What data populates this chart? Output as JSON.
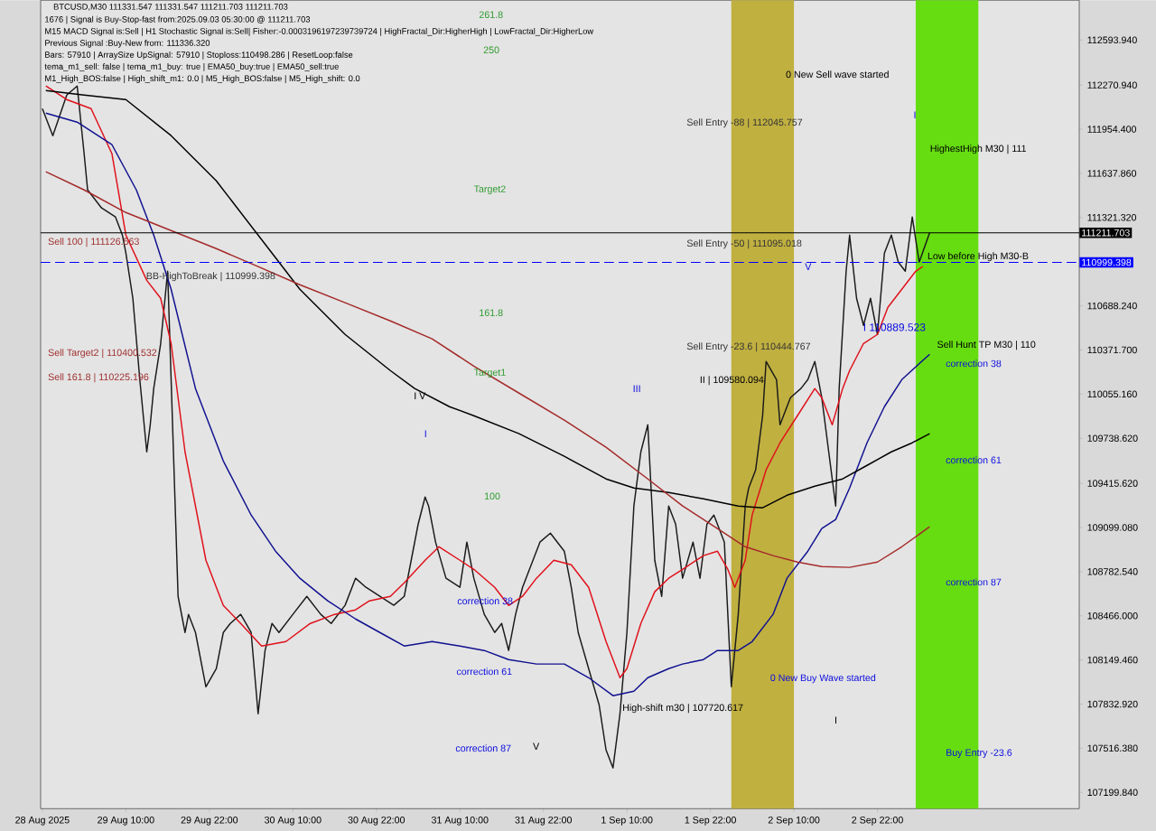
{
  "chart_data": {
    "type": "line",
    "title": "BTCUSD,M30  111331.547 111331.547 111211.703 111211.703",
    "xlim": [
      "2025-08-28T21:45",
      "2025-09-04T03:00"
    ],
    "ylim": [
      107083,
      112879
    ],
    "xticks": [
      {
        "value": "2025-08-28T22:00",
        "label": "28 Aug 2025"
      },
      {
        "value": "2025-08-29T10:00",
        "label": "29 Aug 10:00"
      },
      {
        "value": "2025-08-29T22:00",
        "label": "29 Aug 22:00"
      },
      {
        "value": "2025-08-30T10:00",
        "label": "30 Aug 10:00"
      },
      {
        "value": "2025-08-30T22:00",
        "label": "30 Aug 22:00"
      },
      {
        "value": "2025-08-31T10:00",
        "label": "31 Aug 10:00"
      },
      {
        "value": "2025-08-31T22:00",
        "label": "31 Aug 22:00"
      },
      {
        "value": "2025-09-01T10:00",
        "label": "1 Sep 10:00"
      },
      {
        "value": "2025-09-01T22:00",
        "label": "1 Sep 22:00"
      },
      {
        "value": "2025-09-02T10:00",
        "label": "2 Sep 10:00"
      },
      {
        "value": "2025-09-02T22:00",
        "label": "2 Sep 22:00"
      }
    ],
    "yticks": [
      {
        "value": 112593.94,
        "label": "112593.940"
      },
      {
        "value": 112270.94,
        "label": "112270.940"
      },
      {
        "value": 111954.4,
        "label": "111954.400"
      },
      {
        "value": 111637.86,
        "label": "111637.860"
      },
      {
        "value": 111321.32,
        "label": "111321.320"
      },
      {
        "value": 110688.24,
        "label": "110688.240"
      },
      {
        "value": 110371.7,
        "label": "110371.700"
      },
      {
        "value": 110055.16,
        "label": "110055.160"
      },
      {
        "value": 109738.62,
        "label": "109738.620"
      },
      {
        "value": 109415.62,
        "label": "109415.620"
      },
      {
        "value": 109099.08,
        "label": "109099.080"
      },
      {
        "value": 108782.54,
        "label": "108782.540"
      },
      {
        "value": 108466.0,
        "label": "108466.000"
      },
      {
        "value": 108149.46,
        "label": "108149.460"
      },
      {
        "value": 107832.92,
        "label": "107832.920"
      },
      {
        "value": 107516.38,
        "label": "107516.380"
      },
      {
        "value": 107199.84,
        "label": "107199.840"
      }
    ],
    "marker": "none",
    "series": [
      {
        "color": "#1a1a1a",
        "x": [
          "2025-08-28T22:00",
          "2025-08-28T23:30",
          "2025-08-29T01:30",
          "2025-08-29T03:00",
          "2025-08-29T04:00",
          "2025-08-29T04:30",
          "2025-08-29T06:30",
          "2025-08-29T08:30",
          "2025-08-29T09:30",
          "2025-08-29T10:00",
          "2025-08-29T11:00",
          "2025-08-29T12:00",
          "2025-08-29T13:00",
          "2025-08-29T13:30",
          "2025-08-29T14:00",
          "2025-08-29T15:00",
          "2025-08-29T16:00",
          "2025-08-29T16:30",
          "2025-08-29T17:00",
          "2025-08-29T17:30",
          "2025-08-29T18:30",
          "2025-08-29T19:00",
          "2025-08-29T20:00",
          "2025-08-29T21:30",
          "2025-08-29T23:00",
          "2025-08-30T00:00",
          "2025-08-30T01:00",
          "2025-08-30T02:30",
          "2025-08-30T04:00",
          "2025-08-30T05:00",
          "2025-08-30T06:00",
          "2025-08-30T07:00",
          "2025-08-30T08:00",
          "2025-08-30T10:00",
          "2025-08-30T12:00",
          "2025-08-30T14:00",
          "2025-08-30T15:30",
          "2025-08-30T17:30",
          "2025-08-30T19:00",
          "2025-08-30T20:30",
          "2025-08-30T22:30",
          "2025-08-31T00:30",
          "2025-08-31T02:00",
          "2025-08-31T04:00",
          "2025-08-31T05:00",
          "2025-08-31T05:30",
          "2025-08-31T06:30",
          "2025-08-31T08:00",
          "2025-08-31T10:00",
          "2025-08-31T11:00",
          "2025-08-31T12:00",
          "2025-08-31T13:30",
          "2025-08-31T15:00",
          "2025-08-31T16:00",
          "2025-08-31T17:00",
          "2025-08-31T18:00",
          "2025-08-31T19:00",
          "2025-08-31T20:30",
          "2025-08-31T21:30",
          "2025-08-31T23:00",
          "2025-09-01T01:00",
          "2025-09-01T02:00",
          "2025-09-01T03:00",
          "2025-09-01T04:30",
          "2025-09-01T06:00",
          "2025-09-01T07:00",
          "2025-09-01T08:00",
          "2025-09-01T09:00",
          "2025-09-01T10:00",
          "2025-09-01T11:00",
          "2025-09-01T12:00",
          "2025-09-01T13:00",
          "2025-09-01T14:00",
          "2025-09-01T15:00",
          "2025-09-01T16:00",
          "2025-09-01T17:00",
          "2025-09-01T18:00",
          "2025-09-01T19:30",
          "2025-09-01T20:30",
          "2025-09-01T21:30",
          "2025-09-01T22:30",
          "2025-09-02T00:00",
          "2025-09-02T01:00",
          "2025-09-02T02:00",
          "2025-09-02T03:00",
          "2025-09-02T03:30",
          "2025-09-02T04:30",
          "2025-09-02T05:30",
          "2025-09-02T06:00",
          "2025-09-02T07:30",
          "2025-09-02T08:00",
          "2025-09-02T09:30",
          "2025-09-02T11:00",
          "2025-09-02T12:00",
          "2025-09-02T13:00",
          "2025-09-02T14:00",
          "2025-09-02T15:00",
          "2025-09-02T16:00",
          "2025-09-02T16:30",
          "2025-09-02T17:30",
          "2025-09-02T18:00",
          "2025-09-02T19:00",
          "2025-09-02T20:00",
          "2025-09-02T21:00",
          "2025-09-02T22:00",
          "2025-09-02T23:00",
          "2025-09-03T00:00",
          "2025-09-03T01:00",
          "2025-09-03T02:00",
          "2025-09-03T03:00",
          "2025-09-03T04:00",
          "2025-09-03T05:30"
        ],
        "values": [
          112102,
          111908,
          112199,
          112264,
          111778,
          111519,
          111390,
          111325,
          111195,
          111066,
          110742,
          110159,
          109641,
          109835,
          110095,
          110418,
          110936,
          110159,
          109382,
          108605,
          108346,
          108476,
          108346,
          107957,
          108087,
          108346,
          108411,
          108476,
          108346,
          107763,
          108217,
          108411,
          108346,
          108476,
          108605,
          108476,
          108411,
          108541,
          108735,
          108670,
          108605,
          108541,
          108605,
          109123,
          109317,
          109253,
          108994,
          108735,
          108670,
          108994,
          108735,
          108476,
          108346,
          108411,
          108217,
          108476,
          108670,
          108864,
          108994,
          109058,
          108929,
          108670,
          108346,
          108087,
          107828,
          107504,
          107375,
          107763,
          108346,
          109253,
          109641,
          109835,
          108864,
          108605,
          109253,
          109123,
          108735,
          108994,
          108735,
          109123,
          109188,
          108994,
          107957,
          108476,
          109253,
          109382,
          109512,
          109900,
          110289,
          110159,
          109835,
          110030,
          110095,
          110159,
          110289,
          110030,
          109641,
          109253,
          110095,
          110936,
          111195,
          110742,
          110548,
          110742,
          110483,
          111066,
          111195,
          111001,
          110936,
          111325,
          111001,
          111212
        ]
      },
      {
        "color": "#e0101a",
        "x": [
          "2025-08-28T22:30",
          "2025-08-29T01:30",
          "2025-08-29T05:00",
          "2025-08-29T08:00",
          "2025-08-29T10:00",
          "2025-08-29T13:00",
          "2025-08-29T15:00",
          "2025-08-29T16:30",
          "2025-08-29T18:30",
          "2025-08-29T21:30",
          "2025-08-30T00:00",
          "2025-08-30T02:30",
          "2025-08-30T05:30",
          "2025-08-30T09:00",
          "2025-08-30T12:30",
          "2025-08-30T16:00",
          "2025-08-30T19:00",
          "2025-08-30T21:00",
          "2025-08-31T00:00",
          "2025-08-31T02:00",
          "2025-08-31T05:00",
          "2025-08-31T07:00",
          "2025-08-31T10:00",
          "2025-08-31T12:00",
          "2025-08-31T15:00",
          "2025-08-31T17:00",
          "2025-08-31T19:00",
          "2025-08-31T21:00",
          "2025-08-31T23:30",
          "2025-09-01T02:00",
          "2025-09-01T04:30",
          "2025-09-01T07:00",
          "2025-09-01T09:00",
          "2025-09-01T10:00",
          "2025-09-01T12:00",
          "2025-09-01T14:00",
          "2025-09-01T16:00",
          "2025-09-01T18:00",
          "2025-09-01T21:00",
          "2025-09-01T23:00",
          "2025-09-02T00:30",
          "2025-09-02T01:30",
          "2025-09-02T03:00",
          "2025-09-02T04:00",
          "2025-09-02T06:00",
          "2025-09-02T08:00",
          "2025-09-02T10:30",
          "2025-09-02T13:00",
          "2025-09-02T14:00",
          "2025-09-02T15:30",
          "2025-09-02T17:00",
          "2025-09-02T18:00",
          "2025-09-02T20:00",
          "2025-09-02T22:00",
          "2025-09-02T23:30",
          "2025-09-03T01:30",
          "2025-09-03T03:30",
          "2025-09-03T04:30"
        ],
        "values": [
          112264,
          112167,
          112102,
          111778,
          111195,
          110871,
          110742,
          110418,
          109641,
          108864,
          108540,
          108411,
          108249,
          108281,
          108411,
          108476,
          108508,
          108573,
          108605,
          108702,
          108864,
          108961,
          108864,
          108799,
          108670,
          108540,
          108605,
          108735,
          108864,
          108832,
          108670,
          108281,
          108022,
          108087,
          108411,
          108638,
          108735,
          108799,
          108897,
          108929,
          108799,
          108670,
          108864,
          109188,
          109512,
          109706,
          109900,
          110095,
          110030,
          109835,
          110095,
          110224,
          110418,
          110483,
          110677,
          110807,
          110936,
          110969
        ]
      },
      {
        "color": "#101090",
        "x": [
          "2025-08-28T22:30",
          "2025-08-29T03:00",
          "2025-08-29T08:00",
          "2025-08-29T11:30",
          "2025-08-29T14:00",
          "2025-08-29T16:30",
          "2025-08-29T20:00",
          "2025-08-30T00:00",
          "2025-08-30T04:00",
          "2025-08-30T07:30",
          "2025-08-30T11:00",
          "2025-08-30T15:00",
          "2025-08-30T19:00",
          "2025-08-30T22:30",
          "2025-08-31T02:00",
          "2025-08-31T06:00",
          "2025-08-31T10:00",
          "2025-08-31T13:30",
          "2025-08-31T17:00",
          "2025-08-31T21:00",
          "2025-09-01T01:00",
          "2025-09-01T04:30",
          "2025-09-01T08:00",
          "2025-09-01T11:00",
          "2025-09-01T13:00",
          "2025-09-01T16:00",
          "2025-09-01T18:00",
          "2025-09-01T21:00",
          "2025-09-01T23:00",
          "2025-09-02T02:00",
          "2025-09-02T04:00",
          "2025-09-02T07:00",
          "2025-09-02T09:00",
          "2025-09-02T12:00",
          "2025-09-02T14:00",
          "2025-09-02T16:00",
          "2025-09-02T18:00",
          "2025-09-02T20:30",
          "2025-09-02T23:00",
          "2025-09-03T01:30",
          "2025-09-03T05:30"
        ],
        "values": [
          112070,
          112005,
          111843,
          111519,
          111195,
          110807,
          110095,
          109576,
          109188,
          108929,
          108735,
          108573,
          108443,
          108346,
          108249,
          108281,
          108249,
          108217,
          108152,
          108120,
          108120,
          108022,
          107893,
          107925,
          108022,
          108087,
          108120,
          108152,
          108217,
          108217,
          108281,
          108476,
          108735,
          108929,
          109091,
          109156,
          109382,
          109706,
          109965,
          110159,
          110341
        ]
      },
      {
        "color": "#000000",
        "x": [
          "2025-08-28T22:30",
          "2025-08-29T04:00",
          "2025-08-29T10:00",
          "2025-08-29T16:30",
          "2025-08-29T23:00",
          "2025-08-30T05:00",
          "2025-08-30T11:00",
          "2025-08-30T17:30",
          "2025-08-31T00:00",
          "2025-08-31T03:30",
          "2025-08-31T08:30",
          "2025-08-31T12:00",
          "2025-08-31T18:30",
          "2025-09-01T01:00",
          "2025-09-01T07:00",
          "2025-09-01T11:00",
          "2025-09-01T16:00",
          "2025-09-01T21:00",
          "2025-09-02T02:00",
          "2025-09-02T05:30",
          "2025-09-02T09:00",
          "2025-09-02T13:00",
          "2025-09-02T17:00",
          "2025-09-02T20:30",
          "2025-09-03T00:00",
          "2025-09-03T03:00",
          "2025-09-03T05:30"
        ],
        "values": [
          112231,
          112199,
          112167,
          111908,
          111584,
          111195,
          110807,
          110483,
          110224,
          110095,
          109965,
          109900,
          109771,
          109609,
          109447,
          109382,
          109350,
          109304,
          109253,
          109240,
          109330,
          109395,
          109447,
          109544,
          109641,
          109706,
          109771
        ]
      },
      {
        "color": "#a52a2a",
        "x": [
          "2025-08-28T22:30",
          "2025-08-29T04:00",
          "2025-08-29T10:00",
          "2025-08-29T16:30",
          "2025-08-29T23:00",
          "2025-08-30T05:00",
          "2025-08-30T11:00",
          "2025-08-30T17:30",
          "2025-08-31T00:00",
          "2025-08-31T06:00",
          "2025-08-31T12:00",
          "2025-08-31T18:30",
          "2025-09-01T01:00",
          "2025-09-01T07:00",
          "2025-09-01T13:00",
          "2025-09-01T18:00",
          "2025-09-01T23:00",
          "2025-09-02T03:00",
          "2025-09-02T07:00",
          "2025-09-02T10:30",
          "2025-09-02T14:00",
          "2025-09-02T18:00",
          "2025-09-02T22:00",
          "2025-09-03T01:30",
          "2025-09-03T05:30"
        ],
        "values": [
          111649,
          111519,
          111357,
          111228,
          111098,
          110969,
          110839,
          110710,
          110580,
          110451,
          110256,
          110062,
          109868,
          109674,
          109447,
          109253,
          109091,
          108961,
          108897,
          108851,
          108819,
          108813,
          108851,
          108961,
          109104
        ]
      }
    ],
    "bands": [
      {
        "axis": "x",
        "from": "2025-09-02T01:00",
        "to": "2025-09-02T10:00",
        "color": "#c0b040"
      },
      {
        "axis": "x",
        "from": "2025-09-03T03:30",
        "to": "2025-09-03T12:30",
        "color": "#66dd11"
      }
    ],
    "ref_lines": [
      {
        "axis": "y",
        "value": 111211.703,
        "label": "111211.703",
        "color": "#000000",
        "line_style": "solid"
      },
      {
        "axis": "y",
        "value": 110999.398,
        "label": "110999.398",
        "color": "#0000ff",
        "line_style": "dashed"
      }
    ],
    "annotations": [
      "1676 | Signal is Buy-Stop-fast from:2025.09.03 05:30:00 @ 111211.703",
      "M15 MACD Signal is:Sell | H1 Stochastic Signal is:Sell| Fisher:-0.0003196197239739724 | HighFractal_Dir:HigherHigh | LowFractal_Dir:HigherLow",
      "Previous Signal :Buy-New from: 111336.320",
      "Bars: 57910 | ArraySize UpSignal: 57910 | Stoploss:110498.286 | ResetLoop:false",
      "tema_m1_sell: false | tema_m1_buy: true | EMA50_buy:true | EMA50_sell:true",
      "M1_High_BOS:false | High_shift_m1: 0.0 | M5_High_BOS:false | M5_High_shift: 0.0",
      "261.8",
      "250",
      "Target2",
      "161.8",
      "Target1",
      "100",
      "Sell 100 | 111126.563",
      "BB-HighToBreak | 110999.398",
      "Sell Target2 | 110400.532",
      "Sell 161.8 | 110225.196",
      "I V",
      "I",
      "III",
      "II | 109580.094",
      "Sell Entry -23.6 | 110444.767",
      "Sell Entry -50 | 111095.018",
      "Sell Entry -88 | 112045.757",
      "0 New Sell wave started",
      "I",
      "HighestHigh   M30 | 111",
      "Low before High   M30-B",
      "I 110889.523",
      "Sell Hunt TP M30 | 110",
      "correction 38",
      "correction 61",
      "correction 87",
      "Buy Entry -23.6",
      "correction 38",
      "correction 61",
      "correction 87",
      "V",
      "0 New Buy Wave started",
      "High-shift m30 | 107720.617",
      "I",
      "V"
    ]
  }
}
